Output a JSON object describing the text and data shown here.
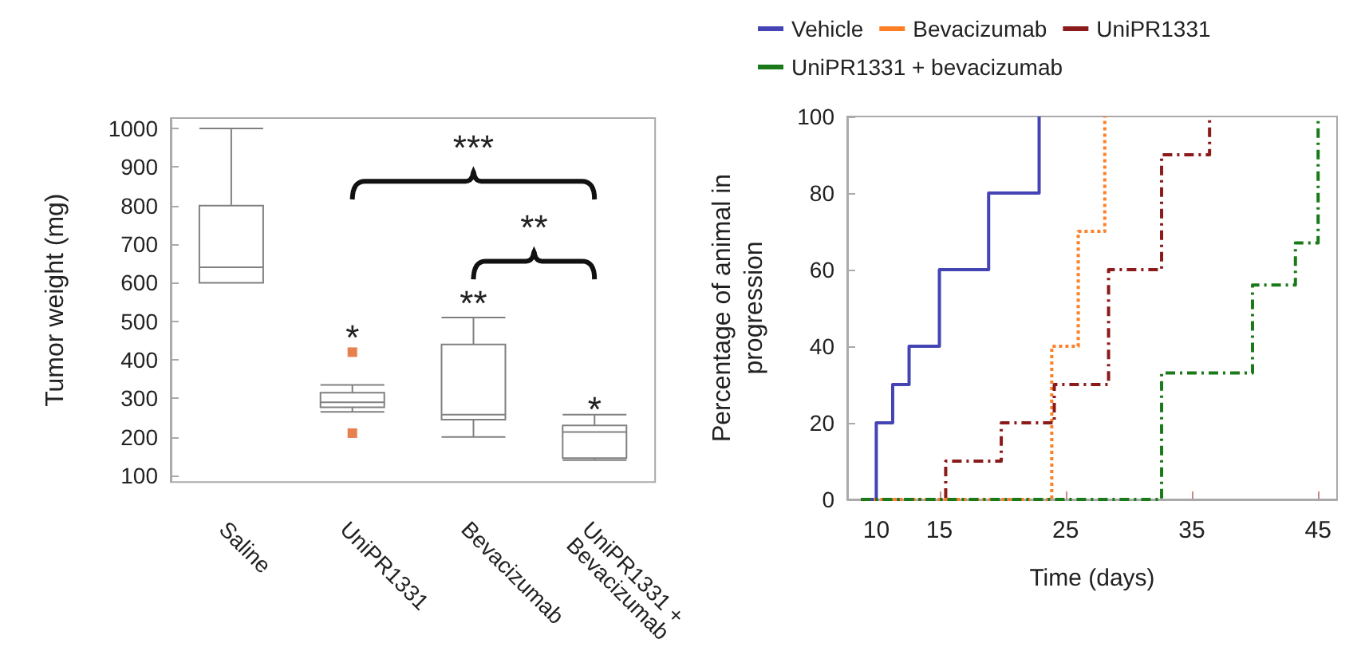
{
  "chart_data": [
    {
      "type": "box",
      "ylabel": "Tumor weight (mg)",
      "categories": [
        "Saline",
        "UniPR1331",
        "Bevacizumab",
        "UniPR1331 + Bevacizumab"
      ],
      "color": "#808080",
      "boxes": [
        {
          "low": 600,
          "q1": 600,
          "median": 640,
          "q3": 800,
          "high": 1000
        },
        {
          "low": 265,
          "q1": 277,
          "median": 290,
          "q3": 315,
          "high": 335,
          "outliers": [
            420,
            210
          ]
        },
        {
          "low": 200,
          "q1": 245,
          "median": 258,
          "q3": 440,
          "high": 510
        },
        {
          "low": 140,
          "q1": 145,
          "median": 213,
          "q3": 230,
          "high": 258
        }
      ],
      "ylim": [
        83,
        1027
      ],
      "yticks": [
        100,
        200,
        300,
        400,
        500,
        600,
        700,
        800,
        900,
        1000
      ],
      "annotations": [
        "*",
        "**",
        "*",
        "***",
        "**"
      ]
    },
    {
      "type": "step",
      "xlabel": "Time (days)",
      "ylabel": "Percentage of animal in progression",
      "legend": "top",
      "series": [
        {
          "name": "Vehicle",
          "color": "#4444b4",
          "line_style": "solid",
          "x": [
            8.8,
            10,
            11.3,
            12.6,
            15,
            18.9,
            22.9
          ],
          "values": [
            0,
            20,
            30,
            40,
            60,
            80,
            100
          ]
        },
        {
          "name": "Bevacizumab",
          "color": "#ff7f27",
          "line_style": "dotted",
          "x": [
            8.8,
            23.9,
            26,
            28.1
          ],
          "values": [
            0,
            40,
            70,
            100
          ]
        },
        {
          "name": "UniPR1331",
          "color": "#8b1a1a",
          "line_style": "dashed",
          "x": [
            8.8,
            15.5,
            19.9,
            24.1,
            28.4,
            32.6,
            36.4
          ],
          "values": [
            0,
            10,
            20,
            30,
            60,
            90,
            100
          ]
        },
        {
          "name": "UniPR1331 + bevacizumab",
          "color": "#1a7a1a",
          "line_style": "dashed",
          "x": [
            8.8,
            32.6,
            39.8,
            43.2,
            45
          ],
          "values": [
            0,
            33,
            56,
            67,
            100
          ]
        }
      ],
      "xlim": [
        7.7,
        46.5
      ],
      "xticks": [
        10,
        15,
        25,
        35,
        45
      ],
      "ylim": [
        0,
        100
      ],
      "yticks": [
        0,
        20,
        40,
        60,
        80,
        100
      ]
    }
  ]
}
